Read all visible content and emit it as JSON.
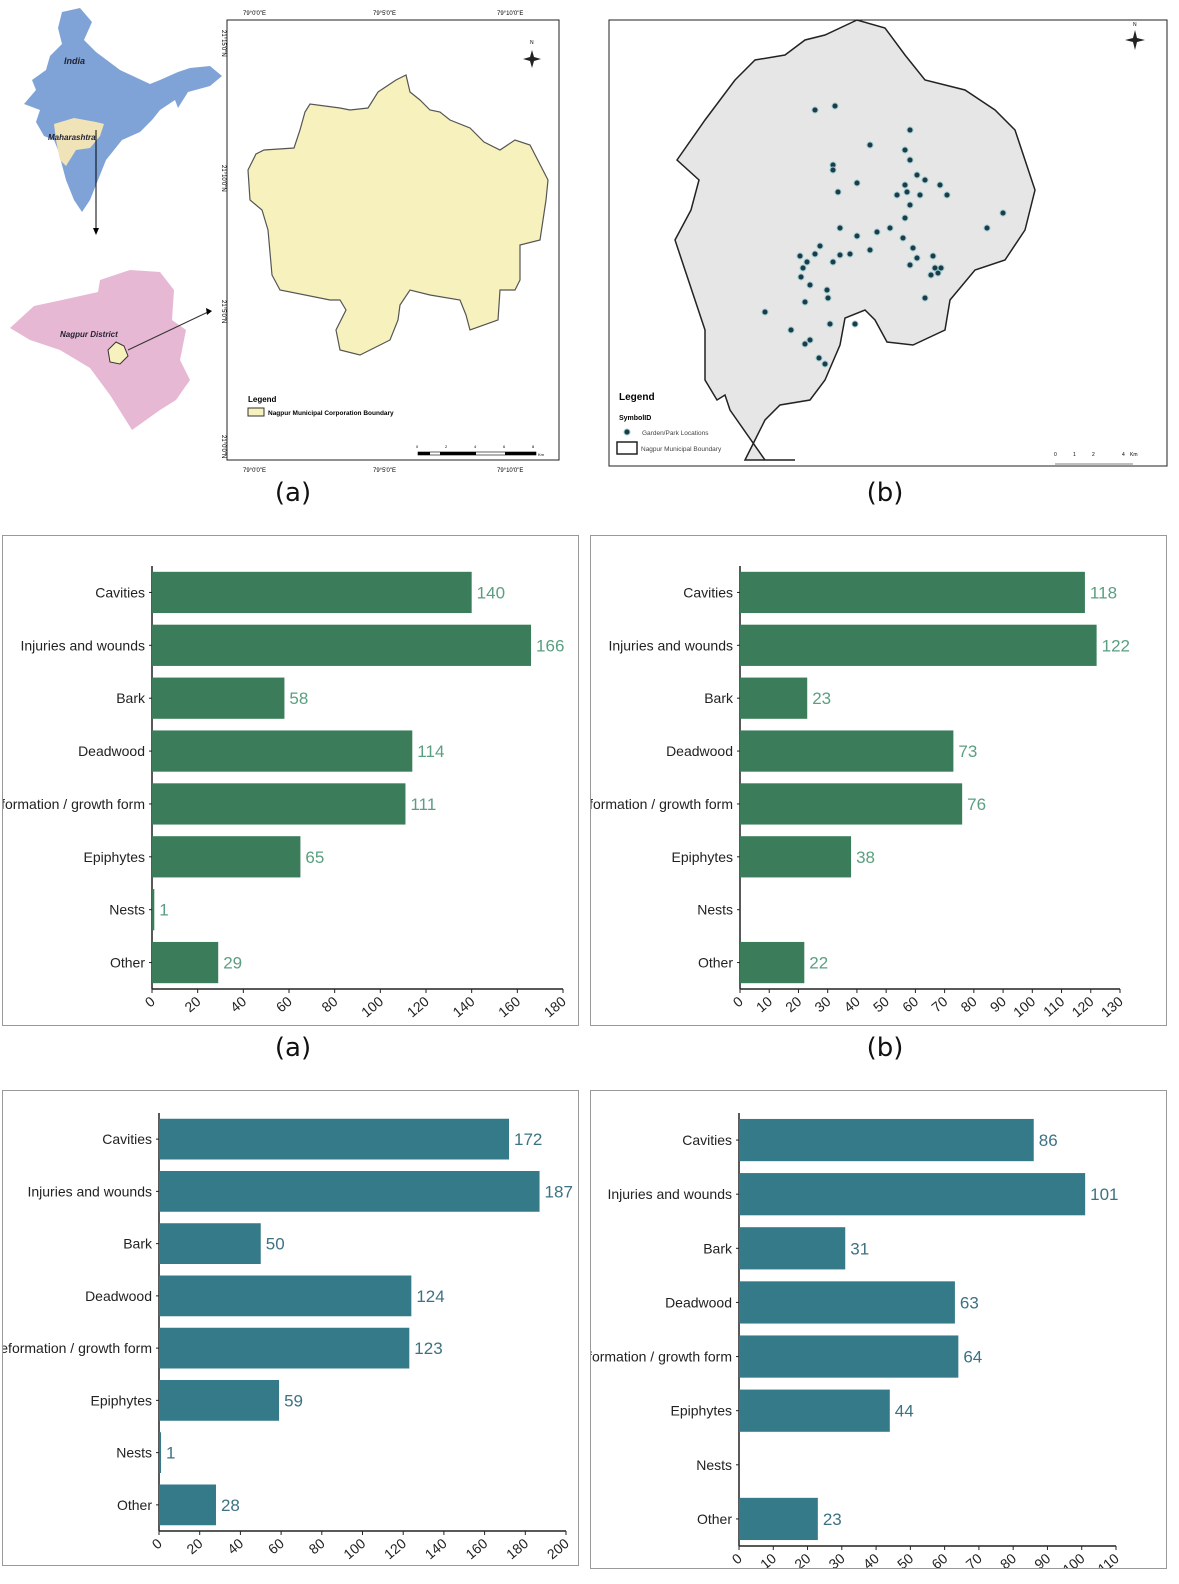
{
  "maps": {
    "a": {
      "caption": "(a)",
      "inset_labels": {
        "country": "India",
        "state": "Maharashtra",
        "district": "Nagpur District"
      },
      "lon_ticks": [
        "79°0'0\"E",
        "79°5'0\"E",
        "79°10'0\"E"
      ],
      "lat_ticks": [
        "21°15'0\"N",
        "21°10'0\"N",
        "21°5'0\"N",
        "21°0'0\"N"
      ],
      "legend_title": "Legend",
      "legend_item": "Nagpur Municipal Corporation Boundary",
      "scale_labels": [
        "0",
        "2",
        "4",
        "6",
        "8"
      ],
      "scale_unit": "Km",
      "north_label": "N",
      "colors": {
        "india": "#7fa3d6",
        "maharashtra": "#f1e3b8",
        "district": "#e7b8d3",
        "boundary_fill": "#f7f2bd"
      }
    },
    "b": {
      "caption": "(b)",
      "legend_title": "Legend",
      "legend_subtitle": "SymbolID",
      "legend_items": [
        "Garden/Park Locations",
        "Nagpur Municipal Boundary"
      ],
      "scale_labels": [
        "0",
        "1",
        "2",
        "4"
      ],
      "scale_unit": "Km",
      "north_label": "N",
      "colors": {
        "point": "#1d3a4a",
        "basemap": "#e6e6e6"
      }
    }
  },
  "chart_captions": [
    "(a)",
    "(b)"
  ],
  "chart_data": [
    {
      "type": "bar",
      "orientation": "horizontal",
      "categories": [
        "Cavities",
        "Injuries and wounds",
        "Bark",
        "Deadwood",
        "Deformation / growth form",
        "Epiphytes",
        "Nests",
        "Other"
      ],
      "values": [
        140,
        166,
        58,
        114,
        111,
        65,
        1,
        29
      ],
      "data_labels": [
        "140",
        "166",
        "58",
        "114",
        "111",
        "65",
        "1",
        "29"
      ],
      "xlim": [
        0,
        180
      ],
      "xticks": [
        0,
        20,
        40,
        60,
        80,
        100,
        120,
        140,
        160,
        180
      ],
      "grid": false,
      "color": "#3b7d5b",
      "label_color": "#5a9f80"
    },
    {
      "type": "bar",
      "orientation": "horizontal",
      "categories": [
        "Cavities",
        "Injuries and wounds",
        "Bark",
        "Deadwood",
        "Deformation / growth form",
        "Epiphytes",
        "Nests",
        "Other"
      ],
      "values": [
        118,
        122,
        23,
        73,
        76,
        38,
        null,
        22
      ],
      "data_labels": [
        "118",
        "122",
        "23",
        "73",
        "76",
        "38",
        "",
        "22"
      ],
      "xlim": [
        0,
        130
      ],
      "xticks": [
        0,
        10,
        20,
        30,
        40,
        50,
        60,
        70,
        80,
        90,
        100,
        110,
        120,
        130
      ],
      "grid": false,
      "color": "#3b7d5b",
      "label_color": "#5a9f80"
    },
    {
      "type": "bar",
      "orientation": "horizontal",
      "categories": [
        "Cavities",
        "Injuries and wounds",
        "Bark",
        "Deadwood",
        "Deformation / growth form",
        "Epiphytes",
        "Nests",
        "Other"
      ],
      "values": [
        172,
        187,
        50,
        124,
        123,
        59,
        1,
        28
      ],
      "data_labels": [
        "172",
        "187",
        "50",
        "124",
        "123",
        "59",
        "1",
        "28"
      ],
      "xlim": [
        0,
        200
      ],
      "xticks": [
        0,
        20,
        40,
        60,
        80,
        100,
        120,
        140,
        160,
        180,
        200
      ],
      "grid": false,
      "color": "#357a89",
      "label_color": "#3d7283"
    },
    {
      "type": "bar",
      "orientation": "horizontal",
      "categories": [
        "Cavities",
        "Injuries and wounds",
        "Bark",
        "Deadwood",
        "Deformation / growth form",
        "Epiphytes",
        "Nests",
        "Other"
      ],
      "values": [
        86,
        101,
        31,
        63,
        64,
        44,
        null,
        23
      ],
      "data_labels": [
        "86",
        "101",
        "31",
        "63",
        "64",
        "44",
        "",
        "23"
      ],
      "xlim": [
        0,
        110
      ],
      "xticks": [
        0,
        10,
        20,
        30,
        40,
        50,
        60,
        70,
        80,
        90,
        100,
        110
      ],
      "grid": false,
      "color": "#357a89",
      "label_color": "#3d7283"
    }
  ]
}
